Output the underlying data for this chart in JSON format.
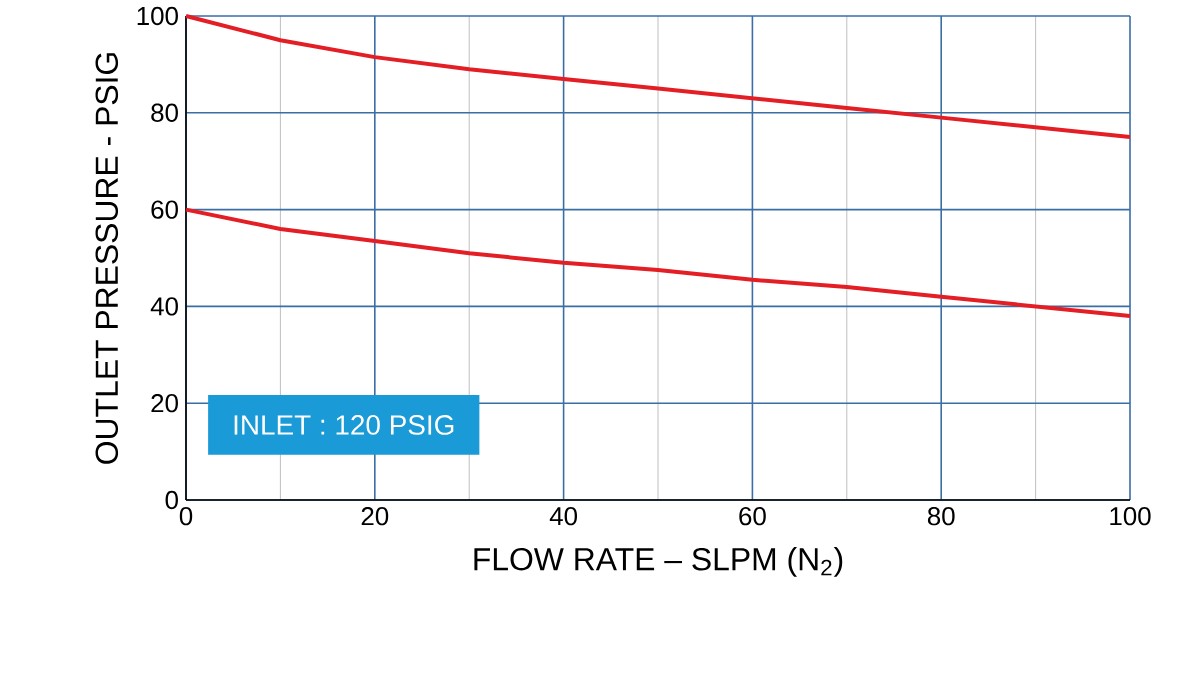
{
  "chart_data": {
    "type": "line",
    "xlabel": "FLOW RATE – SLPM (N$_{2}$)",
    "ylabel": "OUTLET PRESSURE - PSIG",
    "x": [
      0,
      10,
      20,
      30,
      40,
      50,
      60,
      70,
      80,
      90,
      100
    ],
    "series": [
      {
        "color": "#e31e24",
        "values": [
          100,
          95,
          91.5,
          89,
          87,
          85,
          83,
          81,
          79,
          77,
          75
        ]
      },
      {
        "color": "#e31e24",
        "values": [
          60,
          56,
          53.5,
          51,
          49,
          47.5,
          45.5,
          44,
          42,
          40,
          38
        ]
      }
    ],
    "xlim": [
      0,
      100
    ],
    "ylim": [
      0,
      100
    ],
    "xticks": [
      0,
      20,
      40,
      60,
      80,
      100
    ],
    "yticks": [
      0,
      20,
      40,
      60,
      80,
      100
    ],
    "grid": true,
    "marker": "none",
    "line_style": "solid",
    "annotations": [
      "INLET : 120 PSIG"
    ]
  }
}
